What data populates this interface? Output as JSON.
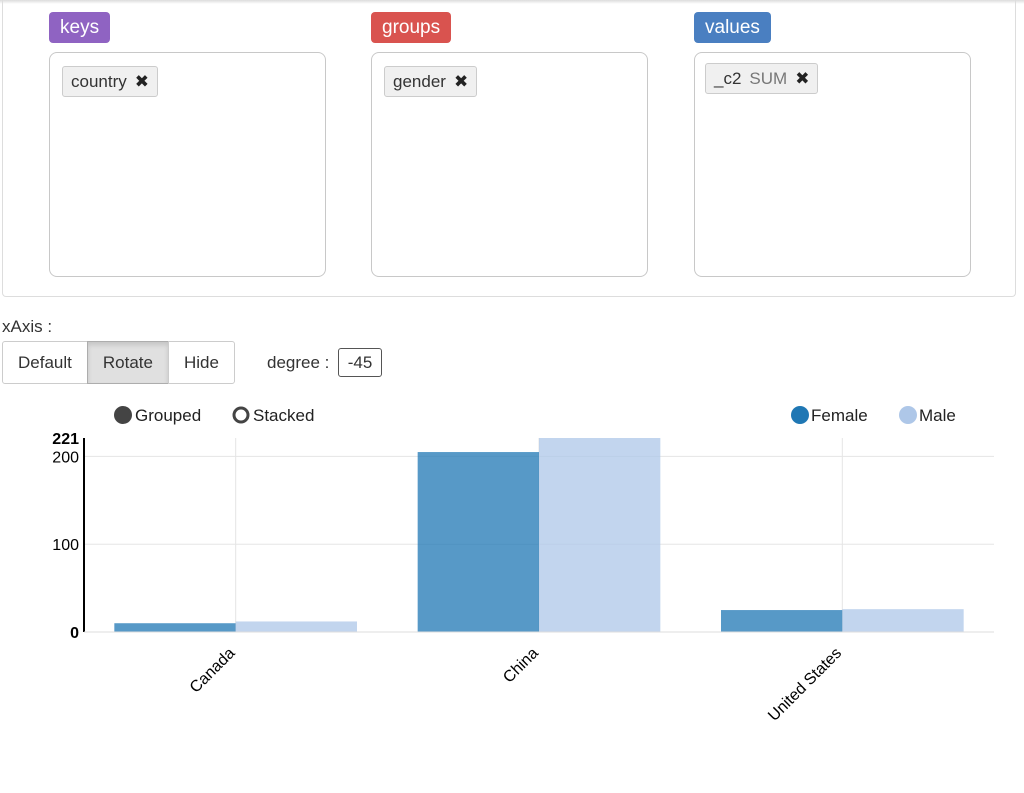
{
  "pivot": {
    "keys": {
      "label": "keys",
      "color": "#8f63c2",
      "chips": [
        {
          "name": "country"
        }
      ]
    },
    "groups": {
      "label": "groups",
      "color": "#d9534f",
      "chips": [
        {
          "name": "gender"
        }
      ]
    },
    "values": {
      "label": "values",
      "color": "#4a7fc1",
      "chips": [
        {
          "name": "_c2",
          "agg": "SUM"
        }
      ]
    },
    "remove_icon": "close-icon"
  },
  "xaxis": {
    "label": "xAxis :",
    "options": [
      "Default",
      "Rotate",
      "Hide"
    ],
    "selected": "Rotate",
    "degree_label": "degree :",
    "degree_value": "-45"
  },
  "chart_controls": {
    "modes": [
      "Grouped",
      "Stacked"
    ],
    "selected_mode": "Grouped"
  },
  "chart_data": {
    "type": "bar",
    "categories": [
      "Canada",
      "China",
      "United States"
    ],
    "series": [
      {
        "name": "Female",
        "values": [
          10,
          205,
          25
        ],
        "color": "#1f77b4"
      },
      {
        "name": "Male",
        "values": [
          12,
          221,
          26
        ],
        "color": "#aec7e8"
      }
    ],
    "yticks": [
      "0",
      "100",
      "200",
      "221"
    ],
    "ylim": [
      0,
      221
    ],
    "xlabel_rotation": -45,
    "grid": true,
    "legend_position": "top-right"
  }
}
